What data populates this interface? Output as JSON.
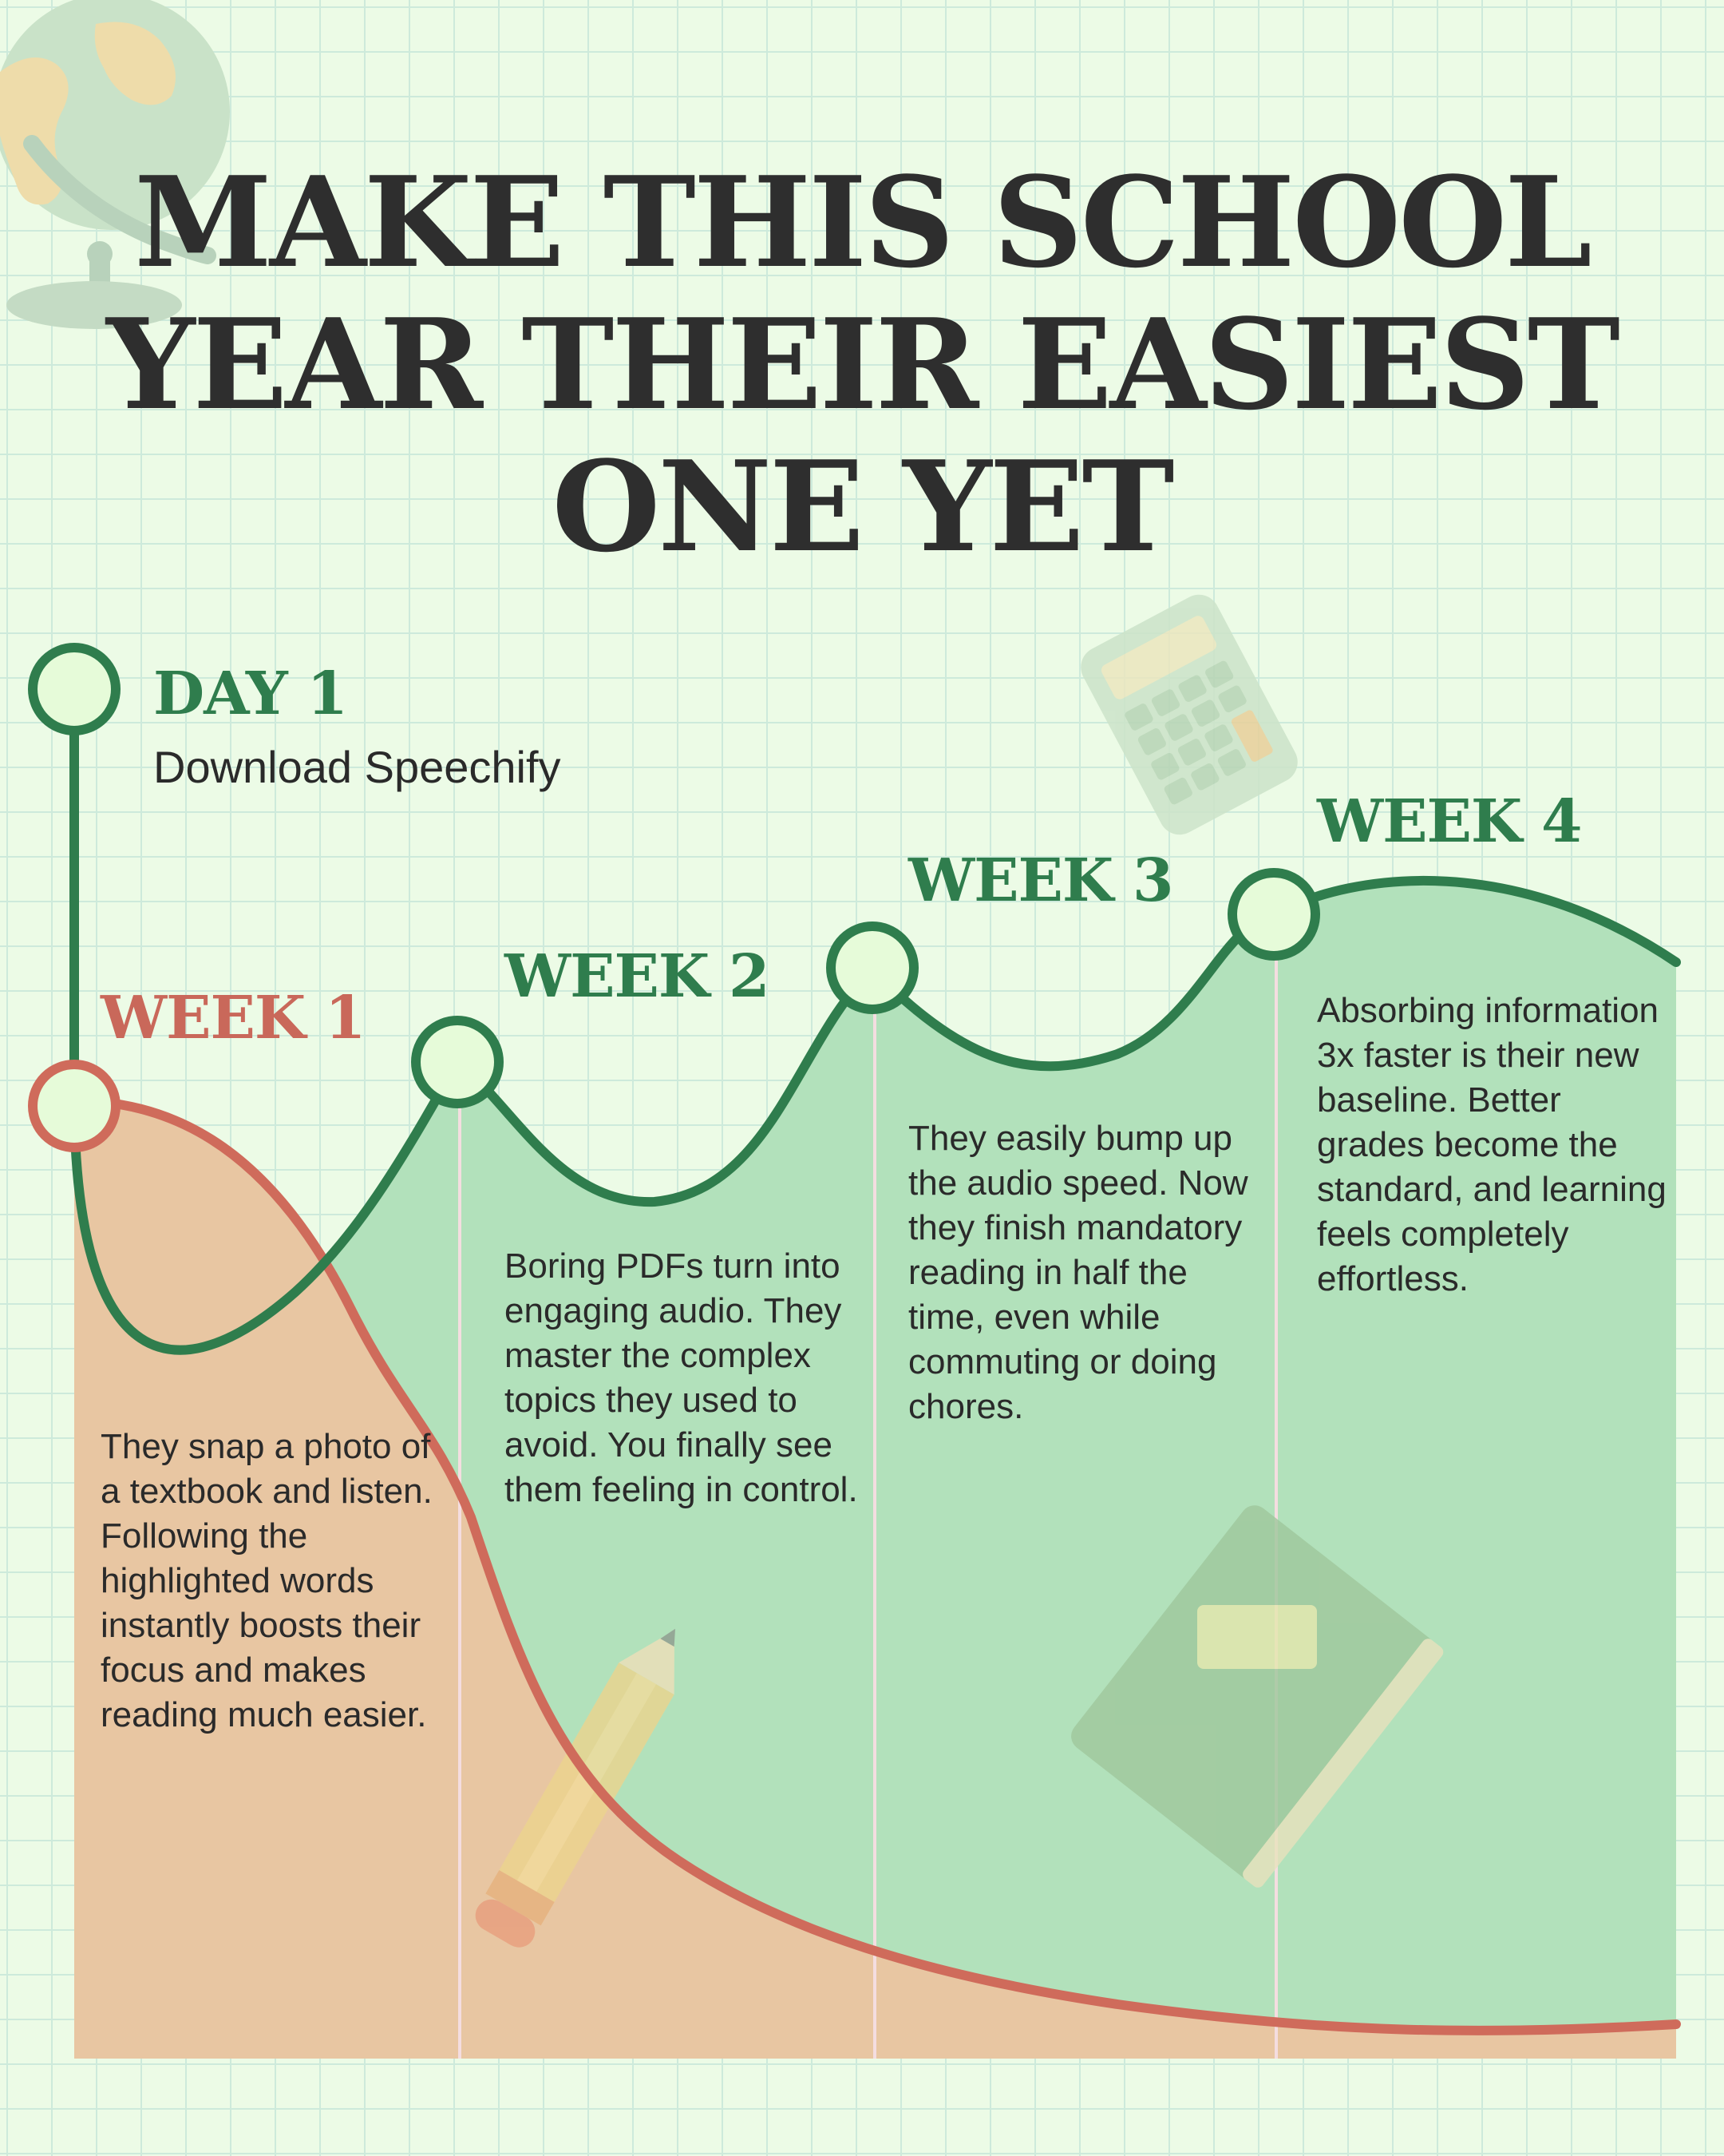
{
  "title": {
    "line1": "MAKE THIS SCHOOL",
    "line2": "YEAR THEIR EASIEST",
    "line3": "ONE YET"
  },
  "colors": {
    "background": "#ecfbe6",
    "grid": "#cdeadb",
    "title": "#2e2e2e",
    "green_line": "#2f7d4d",
    "green_fill": "#b2e1bb",
    "red_line": "#cf6b5b",
    "red_fill": "#e8c6a2",
    "marker_fill": "#e6fbd9"
  },
  "timeline": {
    "day1": {
      "label": "DAY 1",
      "subtitle": "Download Speechify"
    },
    "week1": {
      "label": "WEEK 1",
      "text": "They snap a photo of a textbook and listen. Following the highlighted words instantly boosts their focus and makes reading much easier."
    },
    "week2": {
      "label": "WEEK 2",
      "text": "Boring PDFs turn into engaging audio. They master the complex topics they used to avoid. You finally see them feeling in control."
    },
    "week3": {
      "label": "WEEK 3",
      "text": "They easily bump up the audio speed. Now they finish mandatory reading in half the time, even while commuting or doing chores."
    },
    "week4": {
      "label": "WEEK 4",
      "text": "Absorbing information 3x faster is their new baseline. Better grades become the standard, and learning feels completely effortless."
    }
  },
  "decorations": [
    "globe-illustration",
    "calculator-illustration",
    "pencil-illustration",
    "book-illustration"
  ]
}
